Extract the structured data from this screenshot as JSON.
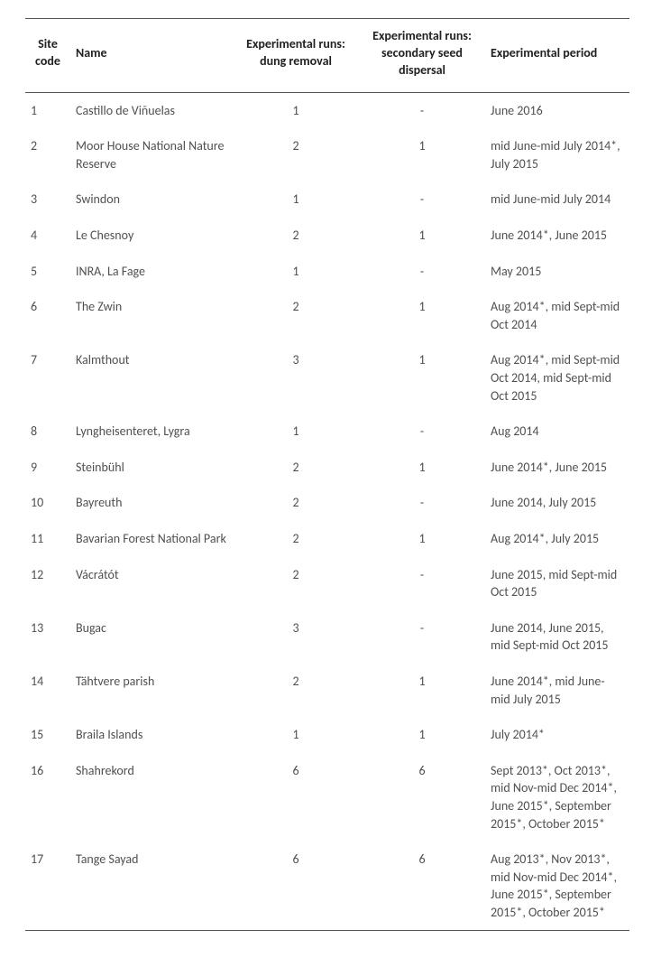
{
  "table": {
    "headers": {
      "site_code": "Site code",
      "name": "Name",
      "dung_removal": "Experimental runs:\ndung removal",
      "seed_dispersal": "Experimental runs:\nsecondary seed\ndispersal",
      "period": "Experimental period"
    },
    "rows": [
      {
        "code": "1",
        "name": "Castillo de Viñuelas",
        "dung": "1",
        "seed": "-",
        "period": "June 2016"
      },
      {
        "code": "2",
        "name": "Moor House National Nature Reserve",
        "dung": "2",
        "seed": "1",
        "period": "mid June-mid July 2014*, July 2015"
      },
      {
        "code": "3",
        "name": "Swindon",
        "dung": "1",
        "seed": "-",
        "period": "mid June-mid July 2014"
      },
      {
        "code": "4",
        "name": "Le Chesnoy",
        "dung": "2",
        "seed": "1",
        "period": "June 2014*, June 2015"
      },
      {
        "code": "5",
        "name": "INRA, La Fage",
        "dung": "1",
        "seed": "-",
        "period": "May 2015"
      },
      {
        "code": "6",
        "name": "The Zwin",
        "dung": "2",
        "seed": "1",
        "period": "Aug 2014*, mid Sept-mid Oct 2014"
      },
      {
        "code": "7",
        "name": "Kalmthout",
        "dung": "3",
        "seed": "1",
        "period": "Aug 2014*, mid Sept-mid Oct 2014, mid Sept-mid Oct 2015"
      },
      {
        "code": "8",
        "name": "Lyngheisenteret, Lygra",
        "dung": "1",
        "seed": "-",
        "period": "Aug 2014"
      },
      {
        "code": "9",
        "name": "Steinbühl",
        "dung": "2",
        "seed": "1",
        "period": "June 2014*, June 2015"
      },
      {
        "code": "10",
        "name": "Bayreuth",
        "dung": "2",
        "seed": "-",
        "period": "June 2014, July 2015"
      },
      {
        "code": "11",
        "name": "Bavarian Forest National Park",
        "dung": "2",
        "seed": "1",
        "period": "Aug 2014*, July 2015"
      },
      {
        "code": "12",
        "name": "Vácrátót",
        "dung": "2",
        "seed": "-",
        "period": "June 2015, mid Sept-mid Oct 2015"
      },
      {
        "code": "13",
        "name": "Bugac",
        "dung": "3",
        "seed": "-",
        "period": "June 2014, June 2015, mid Sept-mid Oct 2015"
      },
      {
        "code": "14",
        "name": "Tähtvere parish",
        "dung": "2",
        "seed": "1",
        "period": "June 2014*, mid June-mid July 2015"
      },
      {
        "code": "15",
        "name": "Braila Islands",
        "dung": "1",
        "seed": "1",
        "period": "July 2014*"
      },
      {
        "code": "16",
        "name": "Shahrekord",
        "dung": "6",
        "seed": "6",
        "period": "Sept 2013*, Oct 2013*, mid Nov-mid Dec 2014*, June 2015*, September 2015*, October 2015*"
      },
      {
        "code": "17",
        "name": "Tange Sayad",
        "dung": "6",
        "seed": "6",
        "period": "Aug 2013*, Nov 2013*, mid Nov-mid Dec 2014*, June 2015*, September 2015*, October 2015*"
      }
    ]
  }
}
